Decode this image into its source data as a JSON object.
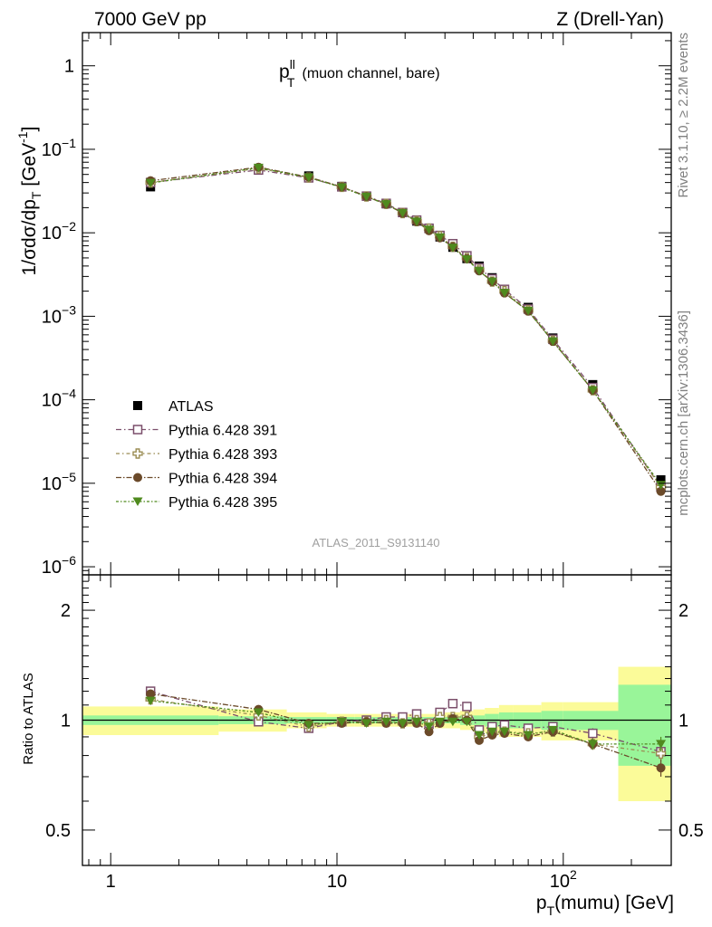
{
  "header": {
    "left": "7000 GeV pp",
    "right": "Z (Drell-Yan)"
  },
  "side_text": {
    "rivet": "Rivet 3.1.10, ≥ 2.2M events",
    "mcplots": "mcplots.cern.ch [arXiv:1306.3436]"
  },
  "analysis_id": "ATLAS_2011_S9131140",
  "colors": {
    "atlas": "#000000",
    "p391": "#7b4f6b",
    "p393": "#9a8c53",
    "p394": "#6b4a2a",
    "p395": "#4f8a1e",
    "band_green": "#99f599",
    "band_yellow": "#fbfb99"
  },
  "chart_data": [
    {
      "type": "scatter",
      "title_main": "p",
      "title_sup": "ll",
      "title_sub": "T",
      "title_rest": "(muon channel, bare)",
      "ylabel": "1/σdσ/dp_T [GeV⁻¹]",
      "xscale": "log",
      "yscale": "log",
      "xlim": [
        0.75,
        300
      ],
      "ylim": [
        8e-07,
        2.5
      ],
      "ytick_labels": [
        {
          "v": 1,
          "base": "1",
          "exp": ""
        },
        {
          "v": 0.1,
          "base": "10",
          "exp": "−1"
        },
        {
          "v": 0.01,
          "base": "10",
          "exp": "−2"
        },
        {
          "v": 0.001,
          "base": "10",
          "exp": "−3"
        },
        {
          "v": 0.0001,
          "base": "10",
          "exp": "−4"
        },
        {
          "v": 1e-05,
          "base": "10",
          "exp": "−5"
        },
        {
          "v": 1e-06,
          "base": "10",
          "exp": "−6"
        }
      ],
      "legend_position": "lower-left",
      "x": [
        1.5,
        4.5,
        7.5,
        10.5,
        13.5,
        16.5,
        19.5,
        22.5,
        25.5,
        28.5,
        32.5,
        37.5,
        42.5,
        48.5,
        55.0,
        70.0,
        90.0,
        135.0,
        270.0
      ],
      "series": [
        {
          "name": "ATLAS",
          "key": "atlas",
          "marker": "square-filled",
          "values": [
            0.0355,
            0.057,
            0.048,
            0.036,
            0.0275,
            0.0222,
            0.0175,
            0.0138,
            0.0114,
            0.0089,
            0.0067,
            0.0049,
            0.004,
            0.0029,
            0.0021,
            0.00128,
            0.00055,
            0.000152,
            1.1e-05
          ]
        },
        {
          "name": "Pythia 6.428 391",
          "key": "p391",
          "marker": "square-open",
          "values": [
            0.04,
            0.0565,
            0.0455,
            0.0355,
            0.0275,
            0.0225,
            0.0175,
            0.0142,
            0.0113,
            0.0093,
            0.0074,
            0.0053,
            0.0038,
            0.0028,
            0.0021,
            0.00122,
            0.00053,
            0.00014,
            9e-06
          ]
        },
        {
          "name": "Pythia 6.428 393",
          "key": "p393",
          "marker": "cross-open",
          "values": [
            0.04,
            0.059,
            0.046,
            0.0355,
            0.0272,
            0.0222,
            0.0172,
            0.0138,
            0.0112,
            0.0091,
            0.0068,
            0.005,
            0.0036,
            0.0026,
            0.002,
            0.00118,
            0.00051,
            0.00013,
            9e-06
          ]
        },
        {
          "name": "Pythia 6.428 394",
          "key": "p394",
          "marker": "circle-filled",
          "values": [
            0.042,
            0.061,
            0.0465,
            0.0355,
            0.0272,
            0.022,
            0.0172,
            0.0136,
            0.0106,
            0.0087,
            0.0068,
            0.0049,
            0.0035,
            0.0026,
            0.0019,
            0.00115,
            0.0005,
            0.00013,
            8e-06
          ]
        },
        {
          "name": "Pythia 6.428 395",
          "key": "p395",
          "marker": "triangle-down-filled",
          "values": [
            0.0395,
            0.06,
            0.046,
            0.035,
            0.027,
            0.022,
            0.0172,
            0.0136,
            0.0109,
            0.0088,
            0.0066,
            0.0048,
            0.0035,
            0.0026,
            0.0019,
            0.00116,
            0.0005,
            0.00013,
            9.5e-06
          ]
        }
      ]
    },
    {
      "type": "scatter",
      "ylabel": "Ratio to ATLAS",
      "xlabel": "p_T(mumu) [GeV]",
      "xlabel_main": "p",
      "xlabel_sub": "T",
      "xlabel_rest": "(mumu) [GeV]",
      "xscale": "log",
      "yscale": "log",
      "xlim": [
        0.75,
        300
      ],
      "ylim": [
        0.4,
        2.5
      ],
      "ytick_labels": [
        {
          "v": 0.5,
          "t": "0.5"
        },
        {
          "v": 1,
          "t": "1"
        },
        {
          "v": 2,
          "t": "2"
        }
      ],
      "xtick_labels": [
        {
          "v": 1,
          "t": "1",
          "exp": ""
        },
        {
          "v": 10,
          "t": "10",
          "exp": ""
        },
        {
          "v": 100,
          "t": "10",
          "exp": "2"
        }
      ],
      "reference_line": 1,
      "bin_edges": [
        0,
        3,
        6,
        9,
        12,
        15,
        18,
        21,
        24,
        27,
        30,
        35,
        40,
        45,
        52,
        60,
        80,
        100,
        175,
        400
      ],
      "band_green": [
        0.03,
        0.025,
        0.02,
        0.02,
        0.02,
        0.02,
        0.02,
        0.02,
        0.02,
        0.02,
        0.02,
        0.03,
        0.03,
        0.04,
        0.05,
        0.05,
        0.06,
        0.06,
        0.25
      ],
      "band_yellow": [
        0.09,
        0.07,
        0.05,
        0.04,
        0.04,
        0.04,
        0.04,
        0.04,
        0.04,
        0.05,
        0.05,
        0.06,
        0.07,
        0.08,
        0.1,
        0.1,
        0.12,
        0.12,
        0.4
      ],
      "x": [
        1.5,
        4.5,
        7.5,
        10.5,
        13.5,
        16.5,
        19.5,
        22.5,
        25.5,
        28.5,
        32.5,
        37.5,
        42.5,
        48.5,
        55.0,
        70.0,
        90.0,
        135.0,
        270.0
      ],
      "series": [
        {
          "name": "Pythia 6.428 391",
          "key": "p391",
          "marker": "square-open",
          "values": [
            1.2,
            0.99,
            0.95,
            0.99,
            1.0,
            1.02,
            1.02,
            1.04,
            0.98,
            1.05,
            1.11,
            1.09,
            0.94,
            0.96,
            0.97,
            0.95,
            0.96,
            0.92,
            0.82
          ],
          "errors": [
            0.02,
            0.01,
            0.01,
            0.01,
            0.01,
            0.01,
            0.01,
            0.01,
            0.01,
            0.01,
            0.01,
            0.01,
            0.02,
            0.02,
            0.02,
            0.02,
            0.02,
            0.03,
            0.04
          ]
        },
        {
          "name": "Pythia 6.428 393",
          "key": "p393",
          "marker": "cross-open",
          "values": [
            1.14,
            1.03,
            0.96,
            0.99,
            0.99,
            1.0,
            0.98,
            1.0,
            0.98,
            1.02,
            1.02,
            1.02,
            0.9,
            0.92,
            0.93,
            0.92,
            0.93,
            0.86,
            0.81
          ],
          "errors": [
            0.02,
            0.01,
            0.01,
            0.01,
            0.01,
            0.01,
            0.01,
            0.01,
            0.01,
            0.01,
            0.01,
            0.01,
            0.02,
            0.02,
            0.02,
            0.02,
            0.02,
            0.03,
            0.04
          ]
        },
        {
          "name": "Pythia 6.428 394",
          "key": "p394",
          "marker": "circle-filled",
          "values": [
            1.18,
            1.07,
            0.98,
            0.98,
            0.99,
            0.98,
            0.98,
            0.98,
            0.93,
            0.98,
            1.01,
            1.0,
            0.88,
            0.91,
            0.92,
            0.9,
            0.93,
            0.86,
            0.74
          ],
          "errors": [
            0.02,
            0.01,
            0.01,
            0.01,
            0.01,
            0.01,
            0.01,
            0.01,
            0.01,
            0.01,
            0.01,
            0.01,
            0.02,
            0.02,
            0.02,
            0.02,
            0.02,
            0.03,
            0.04
          ]
        },
        {
          "name": "Pythia 6.428 395",
          "key": "p395",
          "marker": "triangle-down-filled",
          "values": [
            1.13,
            1.05,
            0.97,
            0.99,
            0.98,
            0.99,
            0.98,
            0.99,
            0.96,
            0.99,
            0.99,
            0.99,
            0.91,
            0.93,
            0.93,
            0.91,
            0.94,
            0.86,
            0.86
          ],
          "errors": [
            0.02,
            0.01,
            0.01,
            0.01,
            0.01,
            0.01,
            0.01,
            0.01,
            0.01,
            0.01,
            0.01,
            0.01,
            0.02,
            0.02,
            0.02,
            0.02,
            0.02,
            0.03,
            0.04
          ]
        }
      ]
    }
  ]
}
